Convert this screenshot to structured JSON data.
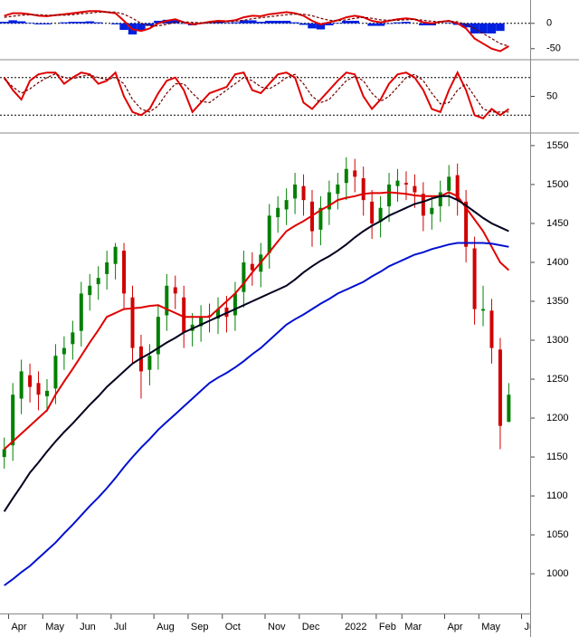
{
  "chart_data": {
    "type": "candlestick",
    "categories": [
      null,
      "Apr",
      null,
      null,
      null,
      "May",
      null,
      null,
      null,
      "Jun",
      null,
      null,
      null,
      "Jul",
      null,
      null,
      null,
      null,
      "Aug",
      null,
      null,
      null,
      "Sep",
      null,
      null,
      null,
      "Oct",
      null,
      null,
      null,
      null,
      "Nov",
      null,
      null,
      null,
      "Dec",
      null,
      null,
      null,
      null,
      "2022",
      null,
      null,
      null,
      "Feb",
      null,
      null,
      "Mar",
      null,
      null,
      null,
      null,
      "Apr",
      null,
      null,
      null,
      "May",
      null,
      null,
      null,
      null,
      "Jun"
    ],
    "open": [
      1150,
      1165,
      1225,
      1255,
      1245,
      1228,
      1238,
      1282,
      1295,
      1312,
      1358,
      1372,
      1385,
      1398,
      1415,
      1355,
      1292,
      1262,
      1282,
      1332,
      1368,
      1355,
      1312,
      1318,
      1332,
      1328,
      1342,
      1332,
      1362,
      1398,
      1388,
      1412,
      1458,
      1468,
      1482,
      1498,
      1478,
      1442,
      1468,
      1488,
      1502,
      1518,
      1508,
      1478,
      1452,
      1472,
      1498,
      1502,
      1498,
      1488,
      1462,
      1472,
      1492,
      1512,
      1478,
      1418,
      1338,
      1338,
      1288,
      1195,
      null,
      null
    ],
    "high": [
      1175,
      1245,
      1275,
      1270,
      1260,
      1250,
      1295,
      1305,
      1325,
      1375,
      1385,
      1395,
      1415,
      1425,
      1425,
      1370,
      1307,
      1295,
      1345,
      1385,
      1383,
      1370,
      1335,
      1345,
      1347,
      1355,
      1357,
      1375,
      1415,
      1413,
      1425,
      1475,
      1485,
      1495,
      1515,
      1513,
      1493,
      1485,
      1505,
      1515,
      1535,
      1533,
      1523,
      1493,
      1485,
      1515,
      1520,
      1517,
      1513,
      1503,
      1485,
      1505,
      1525,
      1527,
      1493,
      1433,
      1370,
      1353,
      1303,
      1245,
      null,
      null
    ],
    "low": [
      1135,
      1145,
      1205,
      1220,
      1210,
      1208,
      1218,
      1262,
      1275,
      1292,
      1338,
      1352,
      1365,
      1378,
      1340,
      1270,
      1225,
      1242,
      1262,
      1312,
      1340,
      1290,
      1292,
      1298,
      1310,
      1308,
      1310,
      1312,
      1342,
      1370,
      1368,
      1392,
      1438,
      1448,
      1462,
      1460,
      1420,
      1422,
      1448,
      1468,
      1480,
      1490,
      1460,
      1430,
      1432,
      1452,
      1478,
      1480,
      1470,
      1440,
      1442,
      1452,
      1472,
      1460,
      1400,
      1320,
      1318,
      1270,
      1160,
      1200,
      null,
      null
    ],
    "close": [
      1160,
      1230,
      1260,
      1240,
      1230,
      1235,
      1280,
      1290,
      1310,
      1360,
      1370,
      1380,
      1400,
      1420,
      1360,
      1290,
      1260,
      1280,
      1330,
      1370,
      1360,
      1310,
      1320,
      1330,
      1330,
      1340,
      1330,
      1360,
      1400,
      1390,
      1410,
      1460,
      1470,
      1480,
      1500,
      1480,
      1440,
      1470,
      1490,
      1500,
      1520,
      1510,
      1480,
      1450,
      1470,
      1500,
      1505,
      1500,
      1490,
      1460,
      1470,
      1490,
      1510,
      1480,
      1420,
      1340,
      1340,
      1290,
      1190,
      1230,
      null,
      null
    ],
    "up_color": "#008000",
    "down_color": "#d00000",
    "ylim": [
      949,
      1565
    ],
    "yticks": [
      1000,
      1050,
      1100,
      1150,
      1200,
      1250,
      1300,
      1350,
      1400,
      1450,
      1500,
      1550
    ],
    "series": [
      {
        "color": "#e00000",
        "values": [
          1160,
          1170,
          1180,
          1190,
          1200,
          1210,
          1230,
          1247,
          1263,
          1280,
          1297,
          1313,
          1330,
          1335,
          1340,
          1341,
          1342,
          1344,
          1345,
          1340,
          1335,
          1330,
          1330,
          1330,
          1330,
          1340,
          1350,
          1360,
          1373,
          1387,
          1400,
          1413,
          1427,
          1440,
          1447,
          1453,
          1460,
          1467,
          1473,
          1480,
          1483,
          1485,
          1488,
          1489,
          1489,
          1490,
          1489,
          1488,
          1486,
          1485,
          1485,
          1485,
          1490,
          1485,
          1470,
          1455,
          1440,
          1420,
          1400,
          1390,
          null,
          null
        ]
      },
      {
        "color": "#000020",
        "values": [
          1080,
          1097,
          1113,
          1130,
          1143,
          1157,
          1170,
          1182,
          1193,
          1205,
          1217,
          1228,
          1240,
          1250,
          1260,
          1270,
          1277,
          1283,
          1290,
          1297,
          1303,
          1310,
          1315,
          1320,
          1325,
          1330,
          1335,
          1340,
          1345,
          1350,
          1355,
          1360,
          1365,
          1370,
          1378,
          1387,
          1395,
          1402,
          1408,
          1415,
          1423,
          1432,
          1440,
          1447,
          1453,
          1460,
          1465,
          1470,
          1475,
          1478,
          1482,
          1485,
          1485,
          1480,
          1473,
          1465,
          1457,
          1450,
          1445,
          1440,
          null,
          null
        ]
      },
      {
        "color": "#0010d0",
        "values": [
          985,
          993,
          1002,
          1010,
          1020,
          1030,
          1040,
          1052,
          1063,
          1075,
          1087,
          1098,
          1110,
          1123,
          1137,
          1150,
          1162,
          1173,
          1185,
          1195,
          1205,
          1215,
          1225,
          1235,
          1245,
          1252,
          1258,
          1265,
          1273,
          1282,
          1290,
          1300,
          1310,
          1320,
          1327,
          1333,
          1340,
          1347,
          1353,
          1360,
          1365,
          1370,
          1375,
          1382,
          1388,
          1395,
          1400,
          1405,
          1410,
          1413,
          1417,
          1420,
          1423,
          1425,
          1425,
          1425,
          1425,
          1424,
          1422,
          1420,
          null,
          null
        ]
      }
    ],
    "panels": [
      {
        "type": "macd",
        "ylim": [
          -70,
          46
        ],
        "yticks": [
          -50,
          0
        ],
        "reference_lines": [
          0
        ],
        "histogram": {
          "color": "#0020e0",
          "values": [
            3,
            6,
            4,
            1,
            -2,
            -2,
            0,
            2,
            3,
            3,
            4,
            2,
            0,
            -2,
            -13,
            -22,
            -15,
            -5,
            5,
            7,
            6,
            -1,
            -4,
            -1,
            2,
            3,
            1,
            2,
            6,
            6,
            3,
            5,
            5,
            5,
            2,
            -3,
            -10,
            -12,
            -4,
            1,
            5,
            5,
            0,
            -5,
            -5,
            -1,
            2,
            3,
            0,
            -4,
            -4,
            0,
            1,
            -3,
            -8,
            -20,
            -20,
            -20,
            -15,
            0,
            null,
            null
          ]
        },
        "series": [
          {
            "color": "#e00000",
            "values": [
              15,
              20,
              20,
              18,
              15,
              14,
              16,
              18,
              20,
              22,
              24,
              24,
              22,
              20,
              5,
              -12,
              -15,
              -10,
              0,
              5,
              8,
              2,
              -2,
              0,
              3,
              5,
              4,
              6,
              12,
              15,
              14,
              18,
              20,
              22,
              20,
              15,
              5,
              -2,
              2,
              6,
              12,
              15,
              12,
              5,
              2,
              5,
              8,
              10,
              8,
              2,
              0,
              3,
              5,
              0,
              -10,
              -30,
              -40,
              -50,
              -55,
              -45,
              null,
              null
            ]
          },
          {
            "color": "#700000",
            "dashed": true,
            "values": [
              12,
              14,
              16,
              17,
              17,
              16,
              16,
              16,
              17,
              19,
              20,
              22,
              22,
              22,
              18,
              10,
              0,
              -5,
              -5,
              -2,
              2,
              3,
              2,
              1,
              1,
              2,
              3,
              4,
              6,
              9,
              11,
              13,
              15,
              17,
              18,
              18,
              15,
              10,
              6,
              5,
              7,
              10,
              12,
              10,
              7,
              6,
              6,
              7,
              8,
              6,
              4,
              3,
              4,
              3,
              -2,
              -10,
              -20,
              -30,
              -40,
              -45,
              null,
              null
            ]
          }
        ]
      },
      {
        "type": "stochastic",
        "ylim": [
          -7,
          107
        ],
        "yticks": [
          50
        ],
        "reference_lines": [
          20,
          80
        ],
        "series": [
          {
            "color": "#e00000",
            "values": [
              80,
              60,
              45,
              75,
              85,
              88,
              88,
              70,
              80,
              88,
              85,
              70,
              75,
              88,
              50,
              25,
              20,
              30,
              55,
              75,
              80,
              60,
              25,
              40,
              55,
              60,
              65,
              85,
              88,
              60,
              55,
              70,
              85,
              88,
              80,
              40,
              30,
              45,
              60,
              75,
              88,
              85,
              50,
              30,
              45,
              70,
              85,
              88,
              80,
              60,
              30,
              25,
              60,
              88,
              60,
              20,
              15,
              30,
              20,
              30,
              null,
              null
            ]
          },
          {
            "color": "#700000",
            "dashed": true,
            "values": [
              78,
              65,
              55,
              62,
              72,
              80,
              86,
              80,
              78,
              82,
              84,
              80,
              77,
              80,
              70,
              45,
              30,
              25,
              35,
              55,
              70,
              70,
              55,
              42,
              40,
              50,
              60,
              70,
              80,
              75,
              65,
              62,
              70,
              80,
              85,
              70,
              50,
              40,
              45,
              60,
              75,
              82,
              75,
              55,
              42,
              50,
              65,
              80,
              85,
              75,
              55,
              38,
              40,
              60,
              70,
              50,
              30,
              25,
              25,
              25,
              null,
              null
            ]
          }
        ]
      }
    ]
  }
}
